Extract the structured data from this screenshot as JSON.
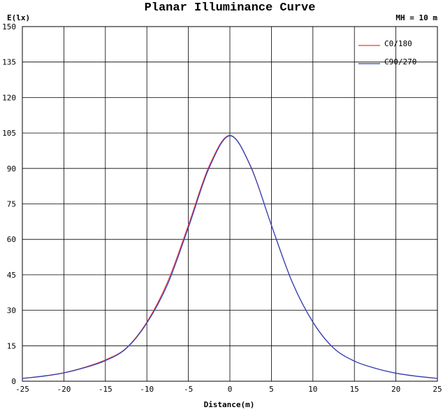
{
  "chart_data": {
    "type": "line",
    "title": "Planar Illuminance Curve",
    "subtitle": "MH = 10 m",
    "xlabel": "Distance(m)",
    "ylabel": "E(lx)",
    "xlim": [
      -25,
      25
    ],
    "ylim": [
      0,
      150
    ],
    "x_ticks": [
      -25,
      -20,
      -15,
      -10,
      -5,
      0,
      5,
      10,
      15,
      20,
      25
    ],
    "y_ticks": [
      0,
      15,
      30,
      45,
      60,
      75,
      90,
      105,
      120,
      135,
      150
    ],
    "x_tick_labels": [
      "-25",
      "-20",
      "-15",
      "-10",
      "-5",
      "0",
      "5",
      "10",
      "15",
      "20",
      "25"
    ],
    "y_tick_labels": [
      "0",
      "15",
      "30",
      "45",
      "60",
      "75",
      "90",
      "105",
      "120",
      "135",
      "150"
    ],
    "grid": true,
    "legend_position": "top-right",
    "x": [
      -25,
      -22.5,
      -20,
      -17.5,
      -15,
      -12.5,
      -10,
      -7.5,
      -5,
      -2.5,
      0,
      2.5,
      5,
      7.5,
      10,
      12.5,
      15,
      17.5,
      20,
      22.5,
      25
    ],
    "series": [
      {
        "name": "C0/180",
        "color": "#ff3030",
        "values": [
          1.2,
          2.2,
          3.6,
          5.9,
          9.0,
          14.0,
          25.0,
          42.0,
          66.0,
          91.0,
          104.0,
          91.0,
          66.0,
          42.0,
          25.0,
          14.0,
          8.5,
          5.5,
          3.4,
          2.1,
          1.2
        ]
      },
      {
        "name": "C90/270",
        "color": "#2040c0",
        "values": [
          1.2,
          2.1,
          3.5,
          5.7,
          8.7,
          13.8,
          24.6,
          41.0,
          65.0,
          90.2,
          103.8,
          90.8,
          66.0,
          42.0,
          25.0,
          14.0,
          8.5,
          5.5,
          3.4,
          2.1,
          1.2
        ]
      }
    ]
  }
}
